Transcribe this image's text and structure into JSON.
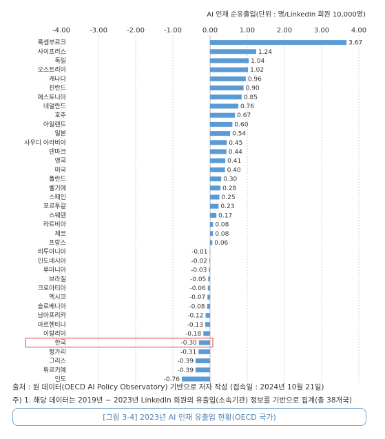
{
  "figure": {
    "unit_label": "AI 인재 순유출입(단위 : 명/LinkedIn 회원 10,000명)",
    "source": "출처 : 원 데이터(OECD AI Policy Observatory) 기반으로 저자 작성 (접속일 : 2024년 10월 21일)",
    "note": "주) 1. 해당 데이터는 2019년 ~ 2023년 LinkedIn 회원의 유출입(소속기관) 정보를 기반으로 집계(총 38개국)",
    "caption": "[그림 3-4] 2023년 AI 인재 유출입 현황(OECD 국가)"
  },
  "chart_data": {
    "type": "bar",
    "orientation": "horizontal",
    "title": "",
    "xlabel": "AI 인재 순유출입(단위 : 명/LinkedIn 회원 10,000명)",
    "ylabel": "",
    "xlim": [
      -4.0,
      4.0
    ],
    "ticks": [
      -4.0,
      -3.0,
      -2.0,
      -1.0,
      0.0,
      1.0,
      2.0,
      3.0,
      4.0
    ],
    "tick_labels": [
      "-4.00",
      "-3.00",
      "-2.00",
      "-1.00",
      "0.00",
      "1.00",
      "2.00",
      "3.00",
      "4.00"
    ],
    "grid": true,
    "bar_color": "#5b9bd5",
    "highlight_color": "#e03c3c",
    "highlight_category": "한국",
    "categories": [
      "룩셈부르크",
      "사이프러스",
      "독일",
      "오스트리아",
      "캐나다",
      "핀란드",
      "에스토니아",
      "네덜란드",
      "호주",
      "아일랜드",
      "일본",
      "사우디 아라비아",
      "덴마크",
      "영국",
      "미국",
      "폴란드",
      "벨기에",
      "스페인",
      "포르투갈",
      "스웨덴",
      "라트비아",
      "체코",
      "프랑스",
      "리투아니아",
      "인도네시아",
      "루마니아",
      "브라질",
      "크로아티아",
      "멕시코",
      "슬로베니아",
      "남아프리카",
      "아르헨티나",
      "이탈리아",
      "한국",
      "헝가리",
      "그리스",
      "튀르키예",
      "인도"
    ],
    "values": [
      3.67,
      1.24,
      1.04,
      1.02,
      0.96,
      0.9,
      0.85,
      0.76,
      0.67,
      0.6,
      0.54,
      0.45,
      0.44,
      0.41,
      0.4,
      0.3,
      0.28,
      0.25,
      0.23,
      0.17,
      0.08,
      0.08,
      0.06,
      -0.01,
      -0.02,
      -0.03,
      -0.05,
      -0.06,
      -0.07,
      -0.08,
      -0.12,
      -0.13,
      -0.18,
      -0.3,
      -0.31,
      -0.39,
      -0.39,
      -0.76
    ],
    "value_labels": [
      "3.67",
      "1.24",
      "1.04",
      "1.02",
      "0.96",
      "0.90",
      "0.85",
      "0.76",
      "0.67",
      "0.60",
      "0.54",
      "0.45",
      "0.44",
      "0.41",
      "0.40",
      "0.30",
      "0.28",
      "0.25",
      "0.23",
      "0.17",
      "0.08",
      "0.08",
      "0.06",
      "-0.01",
      "-0.02",
      "-0.03",
      "-0.05",
      "-0.06",
      "-0.07",
      "-0.08",
      "-0.12",
      "-0.13",
      "-0.18",
      "-0.30",
      "-0.31",
      "-0.39",
      "-0.39",
      "-0.76"
    ]
  }
}
